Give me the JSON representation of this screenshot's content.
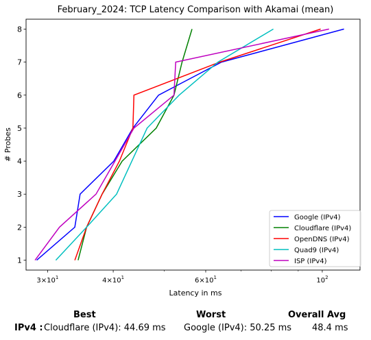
{
  "chart_data": {
    "type": "line",
    "title": "February_2024: TCP Latency Comparison with Akamai (mean)",
    "xlabel": "Latency in ms",
    "ylabel": "# Probes",
    "xscale": "log",
    "xlim": [
      27.3,
      118
    ],
    "ylim": [
      0.7,
      8.3
    ],
    "yticks": [
      1,
      2,
      3,
      4,
      5,
      6,
      7,
      8
    ],
    "xticks": [
      {
        "value": 30,
        "base": "3",
        "label": "× 10",
        "exp": "1"
      },
      {
        "value": 40,
        "base": "4",
        "label": "× 10",
        "exp": "1"
      },
      {
        "value": 60,
        "base": "6",
        "label": "× 10",
        "exp": "1"
      },
      {
        "value": 100,
        "base": "10",
        "label": "",
        "exp": "2"
      }
    ],
    "grid": false,
    "legend_position": "lower-right",
    "series": [
      {
        "name": "Google (IPv4)",
        "color": "#0000ff",
        "points": [
          [
            28.6,
            1
          ],
          [
            33.8,
            2
          ],
          [
            34.6,
            3
          ],
          [
            40.1,
            4
          ],
          [
            43.6,
            5
          ],
          [
            48.8,
            6
          ],
          [
            64.3,
            7
          ],
          [
            110,
            8
          ]
        ]
      },
      {
        "name": "Cloudflare (IPv4)",
        "color": "#008000",
        "points": [
          [
            34.3,
            1
          ],
          [
            35.6,
            2
          ],
          [
            38.1,
            3
          ],
          [
            41.6,
            4
          ],
          [
            48.3,
            5
          ],
          [
            52.2,
            6
          ],
          [
            54.1,
            7
          ],
          [
            56.5,
            8
          ]
        ]
      },
      {
        "name": "OpenDNS (IPv4)",
        "color": "#ff0000",
        "points": [
          [
            33.8,
            1
          ],
          [
            35.6,
            2
          ],
          [
            38.1,
            3
          ],
          [
            41.1,
            4
          ],
          [
            43.6,
            5
          ],
          [
            43.8,
            6
          ],
          [
            63.8,
            7
          ],
          [
            99.3,
            8
          ]
        ]
      },
      {
        "name": "Quad9 (IPv4)",
        "color": "#00bfbf",
        "points": [
          [
            31.1,
            1
          ],
          [
            35.6,
            2
          ],
          [
            40.6,
            3
          ],
          [
            46.4,
            5
          ],
          [
            53.4,
            6
          ],
          [
            63.3,
            7
          ],
          [
            80.7,
            8
          ]
        ]
      },
      {
        "name": "ISP (IPv4)",
        "color": "#bf00bf",
        "points": [
          [
            28.4,
            1
          ],
          [
            31.6,
            2
          ],
          [
            37.1,
            3
          ],
          [
            43.8,
            5
          ],
          [
            52.2,
            6
          ],
          [
            52.6,
            7
          ],
          [
            103,
            8
          ]
        ]
      }
    ]
  },
  "summary": {
    "best_header": "Best",
    "worst_header": "Worst",
    "avg_header": "Overall Avg",
    "row_label": "IPv4 :",
    "best_value": "Cloudflare (IPv4): 44.69 ms",
    "worst_value": "Google (IPv4): 50.25 ms",
    "avg_value": "48.4 ms"
  }
}
